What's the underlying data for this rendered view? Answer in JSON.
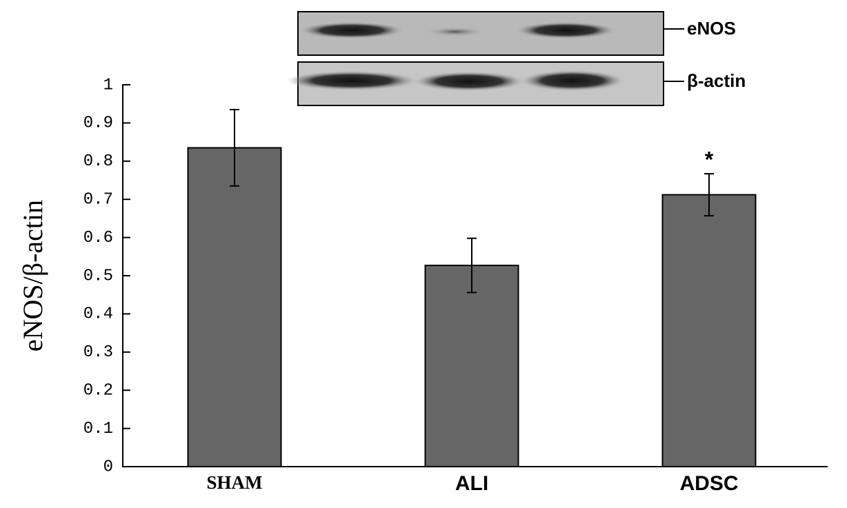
{
  "chart_data": {
    "type": "bar",
    "y_label": "eNOS/β-actin",
    "categories": [
      "SHAM",
      "ALI",
      "ADSC"
    ],
    "values": [
      0.835,
      0.527,
      0.712
    ],
    "errors": [
      0.1,
      0.071,
      0.055
    ],
    "color": "#666666",
    "ylim": [
      0,
      1
    ],
    "yticks": [
      0,
      0.1,
      0.2,
      0.3,
      0.4,
      0.5,
      0.6,
      0.7,
      0.8,
      0.9,
      1
    ],
    "annotation": "*",
    "inset_labels": [
      "eNOS",
      "β-actin"
    ]
  }
}
